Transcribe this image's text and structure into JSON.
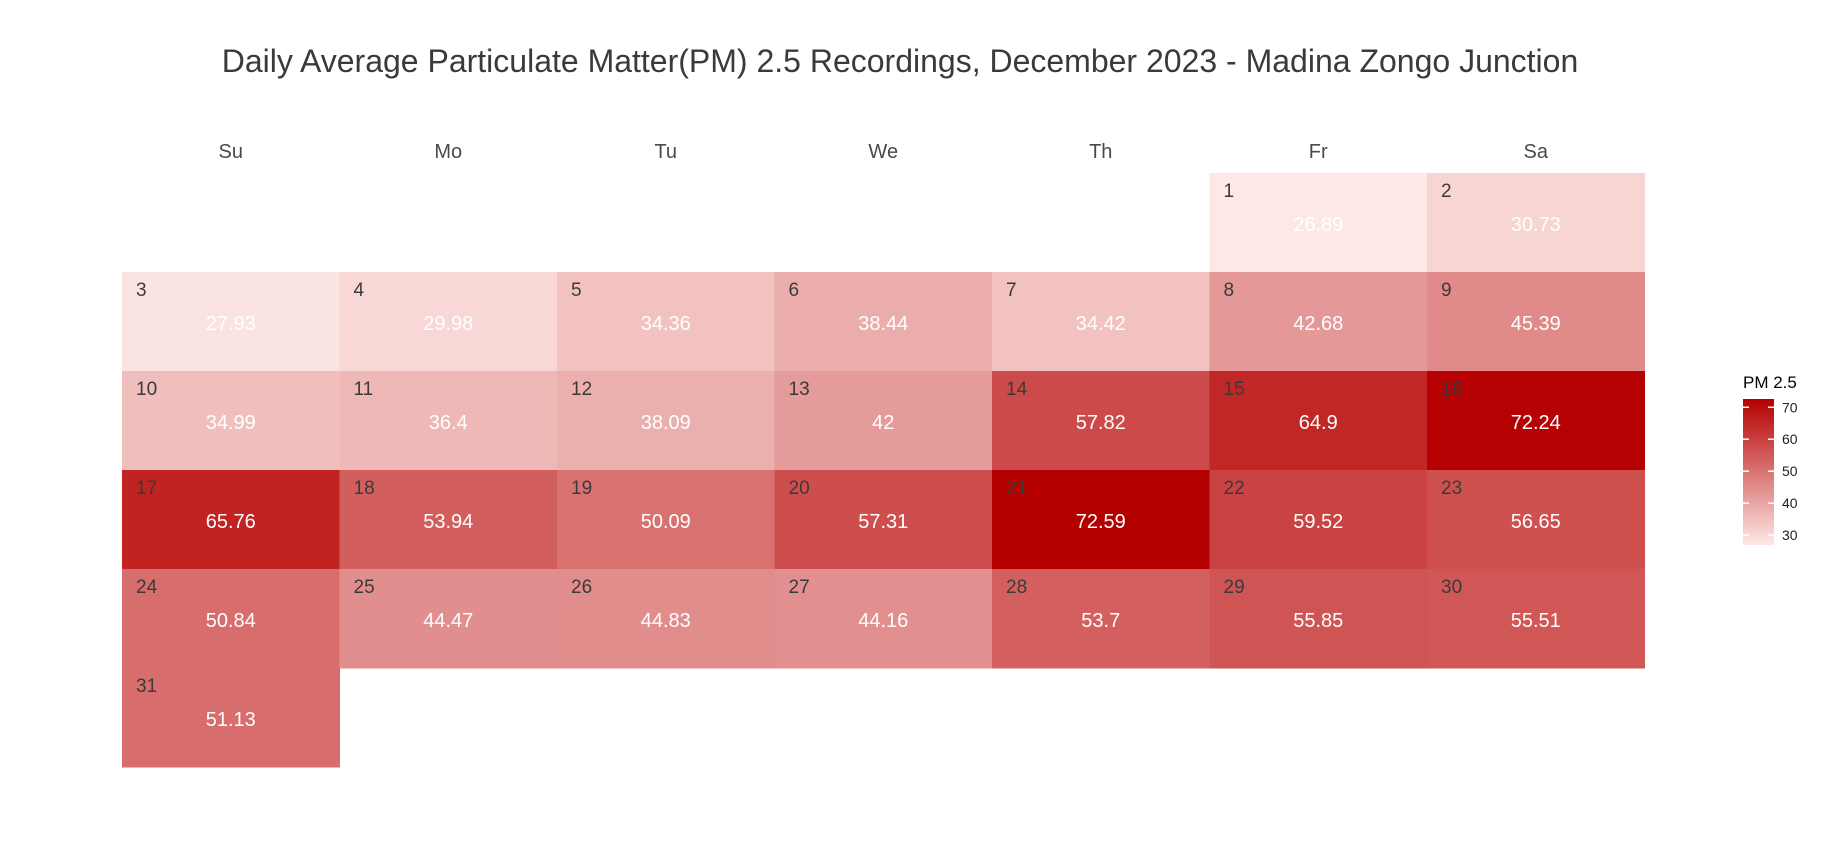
{
  "chart_data": {
    "type": "heatmap",
    "title": "Daily Average Particulate Matter(PM) 2.5 Recordings, December 2023 - Madina Zongo Junction",
    "weekdays": [
      "Su",
      "Mo",
      "Tu",
      "We",
      "Th",
      "Fr",
      "Sa"
    ],
    "first_weekday_index": 5,
    "days": [
      1,
      2,
      3,
      4,
      5,
      6,
      7,
      8,
      9,
      10,
      11,
      12,
      13,
      14,
      15,
      16,
      17,
      18,
      19,
      20,
      21,
      22,
      23,
      24,
      25,
      26,
      27,
      28,
      29,
      30,
      31
    ],
    "values": [
      26.89,
      30.73,
      27.93,
      29.98,
      34.36,
      38.44,
      34.42,
      42.68,
      45.39,
      34.99,
      36.4,
      38.09,
      42,
      57.82,
      64.9,
      72.24,
      65.76,
      53.94,
      50.09,
      57.31,
      72.59,
      59.52,
      56.65,
      50.84,
      44.47,
      44.83,
      44.16,
      53.7,
      55.85,
      55.51,
      51.13
    ],
    "value_labels": [
      "26.89",
      "30.73",
      "27.93",
      "29.98",
      "34.36",
      "38.44",
      "34.42",
      "42.68",
      "45.39",
      "34.99",
      "36.4",
      "38.09",
      "42",
      "57.82",
      "64.9",
      "72.24",
      "65.76",
      "53.94",
      "50.09",
      "57.31",
      "72.59",
      "59.52",
      "56.65",
      "50.84",
      "44.47",
      "44.83",
      "44.16",
      "53.7",
      "55.85",
      "55.51",
      "51.13"
    ],
    "color_scale": {
      "low": "#fde8e6",
      "high": "#b50000",
      "domain": [
        26.89,
        72.59
      ]
    },
    "legend": {
      "title": "PM 2.5",
      "ticks": [
        30,
        40,
        50,
        60,
        70
      ],
      "tick_labels": [
        "30",
        "40",
        "50",
        "60",
        "70"
      ],
      "placement": "right"
    },
    "grid": false
  }
}
